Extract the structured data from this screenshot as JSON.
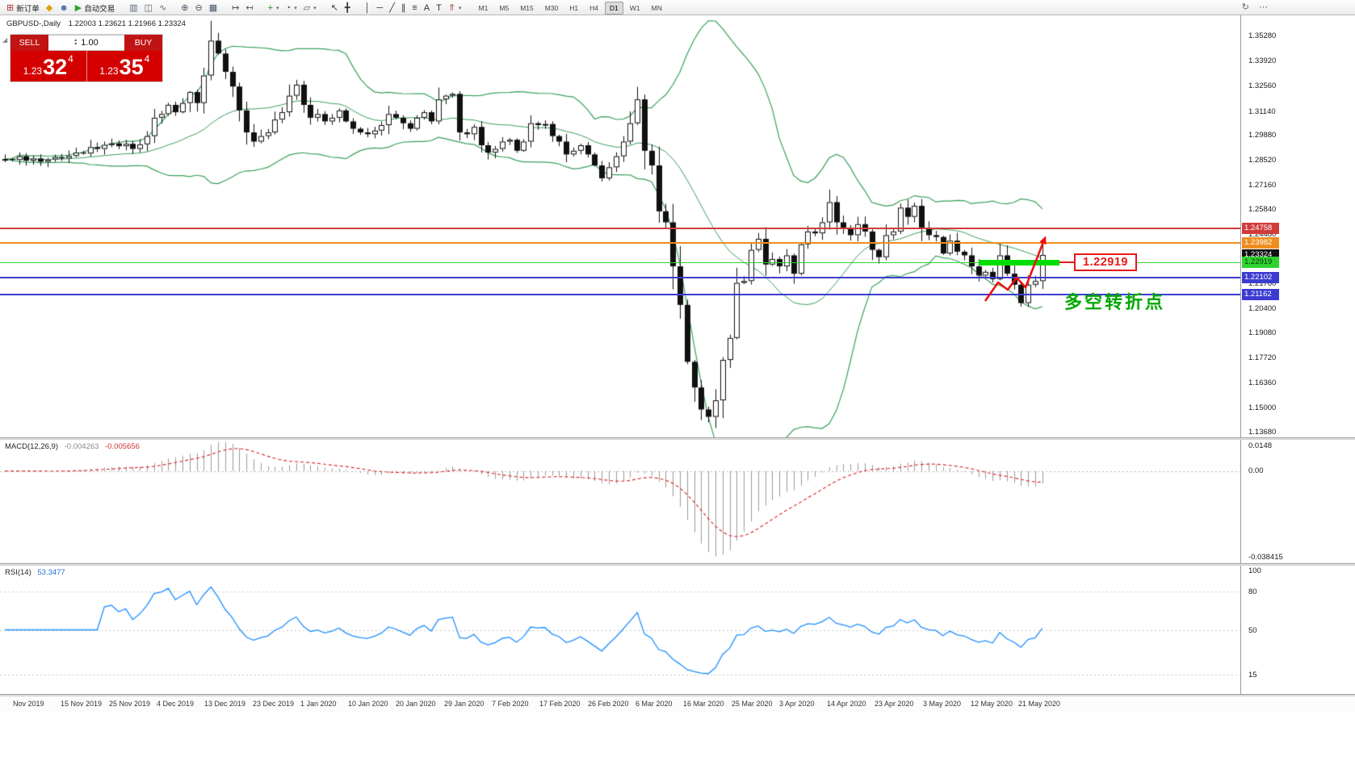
{
  "toolbar": {
    "caret_icon": "▾",
    "items": [
      {
        "type": "button",
        "name": "new-order",
        "icon": "⊞",
        "color": "#b03030",
        "label": "新订单"
      },
      {
        "type": "icon",
        "name": "metaeditor",
        "icon": "◆",
        "color": "#d9a400"
      },
      {
        "type": "icon",
        "name": "profiles",
        "icon": "☻",
        "color": "#4a6fa5"
      },
      {
        "type": "button",
        "name": "autotrading",
        "icon": "▶",
        "color": "#2aa52a",
        "label": "自动交易"
      },
      {
        "type": "sep"
      },
      {
        "type": "icon",
        "name": "chart-bars",
        "icon": "▥",
        "color": "#556677"
      },
      {
        "type": "icon",
        "name": "chart-candles",
        "icon": "◫",
        "color": "#556677"
      },
      {
        "type": "icon",
        "name": "chart-line",
        "icon": "∿",
        "color": "#556677"
      },
      {
        "type": "sep"
      },
      {
        "type": "icon",
        "name": "zoom-in",
        "icon": "⊕",
        "color": "#445566"
      },
      {
        "type": "icon",
        "name": "zoom-out",
        "icon": "⊖",
        "color": "#445566"
      },
      {
        "type": "icon",
        "name": "tile-windows",
        "icon": "▦",
        "color": "#445566"
      },
      {
        "type": "sep"
      },
      {
        "type": "icon",
        "name": "auto-scroll",
        "icon": "↦",
        "color": "#445566"
      },
      {
        "type": "icon",
        "name": "chart-shift",
        "icon": "↤",
        "color": "#445566"
      },
      {
        "type": "sep"
      },
      {
        "type": "icon",
        "name": "indicators-add",
        "icon": "+",
        "color": "#1d8a1d",
        "caret": true
      },
      {
        "type": "icon",
        "name": "periods",
        "icon": "◔",
        "color": "#445566",
        "caret": true
      },
      {
        "type": "icon",
        "name": "templates",
        "icon": "▱",
        "color": "#445566",
        "caret": true
      },
      {
        "type": "sep"
      },
      {
        "type": "icon",
        "name": "cursor",
        "icon": "↖",
        "color": "#333333"
      },
      {
        "type": "icon",
        "name": "crosshair",
        "icon": "╋",
        "color": "#333333"
      },
      {
        "type": "sep"
      },
      {
        "type": "icon",
        "name": "vertical-line-tool",
        "icon": "│",
        "color": "#333333"
      },
      {
        "type": "icon",
        "name": "horizontal-line-tool",
        "icon": "─",
        "color": "#333333"
      },
      {
        "type": "icon",
        "name": "trendline-tool",
        "icon": "╱",
        "color": "#333333"
      },
      {
        "type": "icon",
        "name": "channel-tool",
        "icon": "∥",
        "color": "#333333"
      },
      {
        "type": "icon",
        "name": "fibonacci-tool",
        "icon": "≡",
        "color": "#333333"
      },
      {
        "type": "icon",
        "name": "text-tool",
        "icon": "A",
        "color": "#333333"
      },
      {
        "type": "icon",
        "name": "label-tool",
        "icon": "T",
        "color": "#333333"
      },
      {
        "type": "icon",
        "name": "arrows-tool",
        "icon": "⇑",
        "color": "#aa3333",
        "caret": true
      },
      {
        "type": "sep"
      }
    ],
    "timeframes": [
      "M1",
      "M5",
      "M15",
      "M30",
      "H1",
      "H4",
      "D1",
      "W1",
      "MN"
    ],
    "active_timeframe": "D1",
    "right_items": [
      {
        "name": "refresh",
        "icon": "↻"
      },
      {
        "name": "more",
        "icon": "⋯"
      }
    ]
  },
  "chart_info": {
    "symbol_period": "GBPUSD-,Daily",
    "ohlc": "1.22003 1.23621 1.21966 1.23324"
  },
  "trade_panel": {
    "collapse_icon": "◢",
    "sell_label": "SELL",
    "buy_label": "BUY",
    "volume": "1.00",
    "spin_up_icon": "▴",
    "spin_down_icon": "▾",
    "sell_price": {
      "prefix": "1.23",
      "big": "32",
      "sup": "4"
    },
    "buy_price": {
      "prefix": "1.23",
      "big": "35",
      "sup": "4"
    },
    "button_color": "#c01414",
    "price_color": "#d40000"
  },
  "price_tags": [
    {
      "text": "1.24758",
      "bg": "#d23b3b",
      "fg": "#ffffff"
    },
    {
      "text": "1.23982",
      "bg": "#ef8e1e",
      "fg": "#ffffff"
    },
    {
      "text": "1.23324",
      "bg": "#111111",
      "fg": "#ffffff"
    },
    {
      "text": "1.22919",
      "bg": "#2fd32f",
      "fg": "#073807"
    },
    {
      "text": "1.22102",
      "bg": "#3c3cd2",
      "fg": "#ffffff"
    },
    {
      "text": "1.21162",
      "bg": "#3c3cd2",
      "fg": "#ffffff"
    }
  ],
  "levels": [
    {
      "price": "1.24758",
      "color": "#d23b3b",
      "width": 2
    },
    {
      "price": "1.23982",
      "color": "#ef8e1e",
      "width": 2
    },
    {
      "price": "1.22919",
      "color": "#2fd32f",
      "width": 1
    },
    {
      "price": "1.22102",
      "color": "#3c3cd2",
      "width": 2
    },
    {
      "price": "1.21162",
      "color": "#3c3cd2",
      "width": 2
    }
  ],
  "annotations": {
    "price_box_text": "1.22919",
    "price_box_color": "#e81717",
    "note_text": "多空转折点",
    "note_color": "#00a800",
    "highlight_color": "#00dd00",
    "arrow_color": "#ee1111"
  },
  "macd": {
    "label": "MACD(12,26,9)",
    "value1": "-0.004263",
    "value2": "-0.005656",
    "scale": [
      "0.0148",
      "0.00",
      "-0.038415"
    ],
    "histogram_color": "#9b9b9b",
    "signal_color": "#e03030"
  },
  "rsi": {
    "label": "RSI(14)",
    "value": "53.3477",
    "scale": [
      "100",
      "80",
      "50",
      "15"
    ],
    "levels": [
      80,
      50,
      15
    ],
    "line_color": "#1e90ff"
  },
  "chart_data": {
    "type": "candlestick",
    "symbol": "GBPUSD",
    "period": "Daily",
    "bollinger": {
      "period": 20,
      "deviation": 2,
      "color": "#3aa05a"
    },
    "first_candle_open": 1.285,
    "closes": [
      1.2855,
      1.285,
      1.287,
      1.2846,
      1.2858,
      1.284,
      1.2852,
      1.2865,
      1.2858,
      1.2872,
      1.289,
      1.2885,
      1.292,
      1.291,
      1.2932,
      1.294,
      1.2925,
      1.2938,
      1.291,
      1.2935,
      1.298,
      1.308,
      1.31,
      1.315,
      1.311,
      1.316,
      1.322,
      1.316,
      1.331,
      1.35,
      1.343,
      1.333,
      1.325,
      1.312,
      1.3,
      1.295,
      1.298,
      1.3,
      1.307,
      1.311,
      1.32,
      1.326,
      1.315,
      1.308,
      1.31,
      1.306,
      1.308,
      1.312,
      1.306,
      1.302,
      1.3,
      1.299,
      1.301,
      1.304,
      1.31,
      1.308,
      1.305,
      1.302,
      1.308,
      1.311,
      1.306,
      1.318,
      1.32,
      1.321,
      1.3,
      1.299,
      1.303,
      1.293,
      1.289,
      1.291,
      1.295,
      1.296,
      1.29,
      1.295,
      1.305,
      1.304,
      1.3046,
      1.298,
      1.295,
      1.288,
      1.29,
      1.293,
      1.288,
      1.282,
      1.275,
      1.281,
      1.287,
      1.295,
      1.305,
      1.318,
      1.29,
      1.282,
      1.257,
      1.251,
      1.227,
      1.206,
      1.175,
      1.161,
      1.149,
      1.145,
      1.154,
      1.176,
      1.188,
      1.218,
      1.219,
      1.236,
      1.242,
      1.228,
      1.231,
      1.227,
      1.233,
      1.223,
      1.239,
      1.246,
      1.245,
      1.251,
      1.262,
      1.251,
      1.248,
      1.244,
      1.25,
      1.246,
      1.236,
      1.232,
      1.244,
      1.246,
      1.259,
      1.254,
      1.26,
      1.248,
      1.244,
      1.243,
      1.234,
      1.241,
      1.235,
      1.233,
      1.227,
      1.222,
      1.224,
      1.22,
      1.233,
      1.223,
      1.217,
      1.207,
      1.217,
      1.219,
      1.2332
    ],
    "y_axis_labels": [
      "1.35280",
      "1.33920",
      "1.32560",
      "1.31140",
      "1.29880",
      "1.28520",
      "1.27160",
      "1.25840",
      "1.24480",
      "1.21760",
      "1.20400",
      "1.19080",
      "1.17720",
      "1.16360",
      "1.15000",
      "1.13680"
    ],
    "x_axis_labels": [
      "Nov 2019",
      "15 Nov 2019",
      "25 Nov 2019",
      "4 Dec 2019",
      "13 Dec 2019",
      "23 Dec 2019",
      "1 Jan 2020",
      "10 Jan 2020",
      "20 Jan 2020",
      "29 Jan 2020",
      "7 Feb 2020",
      "17 Feb 2020",
      "26 Feb 2020",
      "6 Mar 2020",
      "16 Mar 2020",
      "25 Mar 2020",
      "3 Apr 2020",
      "14 Apr 2020",
      "23 Apr 2020",
      "3 May 2020",
      "12 May 2020",
      "21 May 2020"
    ]
  }
}
